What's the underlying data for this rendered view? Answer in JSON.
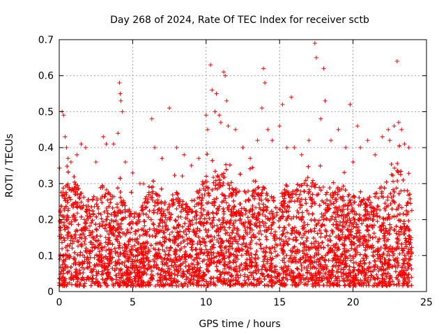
{
  "chart_data": {
    "type": "scatter",
    "title": "Day 268 of 2024, Rate Of TEC Index for receiver sctb",
    "xlabel": "GPS time / hours",
    "ylabel": "ROTI / TECUs",
    "xlim": [
      0,
      25
    ],
    "ylim": [
      0,
      0.7
    ],
    "xticks": [
      "0",
      "5",
      "10",
      "15",
      "20",
      "25"
    ],
    "yticks": [
      "0",
      "0.1",
      "0.2",
      "0.3",
      "0.4",
      "0.5",
      "0.6",
      "0.7"
    ],
    "grid": true,
    "marker": "plus",
    "color": "#ff0000",
    "series": [
      {
        "x_range": [
          0,
          24
        ],
        "points": [
          [
            0.2,
            0.5
          ],
          [
            0.3,
            0.49
          ],
          [
            0.4,
            0.43
          ],
          [
            0.5,
            0.4
          ],
          [
            0.6,
            0.37
          ],
          [
            0.8,
            0.36
          ],
          [
            1.2,
            0.38
          ],
          [
            1.5,
            0.41
          ],
          [
            1.8,
            0.4
          ],
          [
            2.5,
            0.36
          ],
          [
            3.0,
            0.43
          ],
          [
            3.2,
            0.41
          ],
          [
            3.7,
            0.41
          ],
          [
            4.0,
            0.44
          ],
          [
            4.1,
            0.58
          ],
          [
            4.15,
            0.55
          ],
          [
            4.2,
            0.53
          ],
          [
            4.3,
            0.5
          ],
          [
            4.5,
            0.36
          ],
          [
            5.0,
            0.33
          ],
          [
            5.5,
            0.3
          ],
          [
            6.3,
            0.48
          ],
          [
            6.5,
            0.4
          ],
          [
            7.0,
            0.37
          ],
          [
            7.5,
            0.51
          ],
          [
            8.0,
            0.4
          ],
          [
            8.5,
            0.38
          ],
          [
            9.0,
            0.35
          ],
          [
            9.5,
            0.37
          ],
          [
            10.0,
            0.49
          ],
          [
            10.1,
            0.45
          ],
          [
            10.3,
            0.63
          ],
          [
            10.4,
            0.56
          ],
          [
            10.6,
            0.5
          ],
          [
            10.7,
            0.55
          ],
          [
            10.9,
            0.49
          ],
          [
            11.0,
            0.47
          ],
          [
            11.2,
            0.61
          ],
          [
            11.3,
            0.6
          ],
          [
            11.4,
            0.53
          ],
          [
            11.5,
            0.46
          ],
          [
            12.0,
            0.45
          ],
          [
            12.5,
            0.4
          ],
          [
            13.0,
            0.37
          ],
          [
            13.5,
            0.42
          ],
          [
            13.8,
            0.51
          ],
          [
            13.9,
            0.62
          ],
          [
            14.0,
            0.58
          ],
          [
            14.2,
            0.45
          ],
          [
            14.5,
            0.42
          ],
          [
            15.0,
            0.46
          ],
          [
            15.2,
            0.52
          ],
          [
            15.5,
            0.4
          ],
          [
            15.8,
            0.54
          ],
          [
            16.0,
            0.4
          ],
          [
            16.5,
            0.38
          ],
          [
            17.0,
            0.42
          ],
          [
            17.4,
            0.69
          ],
          [
            17.5,
            0.65
          ],
          [
            17.8,
            0.48
          ],
          [
            18.0,
            0.62
          ],
          [
            18.1,
            0.53
          ],
          [
            18.5,
            0.42
          ],
          [
            19.0,
            0.45
          ],
          [
            19.5,
            0.4
          ],
          [
            19.8,
            0.52
          ],
          [
            20.0,
            0.36
          ],
          [
            20.3,
            0.46
          ],
          [
            20.5,
            0.4
          ],
          [
            21.0,
            0.42
          ],
          [
            21.5,
            0.38
          ],
          [
            22.0,
            0.43
          ],
          [
            22.4,
            0.45
          ],
          [
            22.5,
            0.42
          ],
          [
            22.8,
            0.46
          ],
          [
            23.0,
            0.64
          ],
          [
            23.1,
            0.47
          ],
          [
            23.3,
            0.45
          ],
          [
            23.5,
            0.41
          ],
          [
            23.8,
            0.4
          ]
        ],
        "envelope": [
          [
            0,
            0.28
          ],
          [
            0.5,
            0.3
          ],
          [
            1,
            0.3
          ],
          [
            1.5,
            0.29
          ],
          [
            2,
            0.27
          ],
          [
            2.5,
            0.27
          ],
          [
            3,
            0.3
          ],
          [
            3.5,
            0.27
          ],
          [
            4,
            0.3
          ],
          [
            4.5,
            0.25
          ],
          [
            5,
            0.22
          ],
          [
            5.5,
            0.22
          ],
          [
            6,
            0.28
          ],
          [
            6.5,
            0.3
          ],
          [
            7,
            0.25
          ],
          [
            7.5,
            0.26
          ],
          [
            8,
            0.28
          ],
          [
            8.5,
            0.25
          ],
          [
            9,
            0.24
          ],
          [
            9.5,
            0.28
          ],
          [
            10,
            0.33
          ],
          [
            10.5,
            0.32
          ],
          [
            11,
            0.33
          ],
          [
            11.5,
            0.31
          ],
          [
            12,
            0.3
          ],
          [
            12.5,
            0.28
          ],
          [
            13,
            0.28
          ],
          [
            13.5,
            0.3
          ],
          [
            14,
            0.32
          ],
          [
            14.5,
            0.28
          ],
          [
            15,
            0.27
          ],
          [
            15.5,
            0.3
          ],
          [
            16,
            0.28
          ],
          [
            16.5,
            0.3
          ],
          [
            17,
            0.32
          ],
          [
            17.5,
            0.3
          ],
          [
            18,
            0.3
          ],
          [
            18.5,
            0.29
          ],
          [
            19,
            0.3
          ],
          [
            19.5,
            0.29
          ],
          [
            20,
            0.27
          ],
          [
            20.5,
            0.26
          ],
          [
            21,
            0.27
          ],
          [
            21.5,
            0.28
          ],
          [
            22,
            0.3
          ],
          [
            22.5,
            0.33
          ],
          [
            23,
            0.36
          ],
          [
            23.5,
            0.3
          ],
          [
            24,
            0.26
          ]
        ]
      }
    ]
  }
}
